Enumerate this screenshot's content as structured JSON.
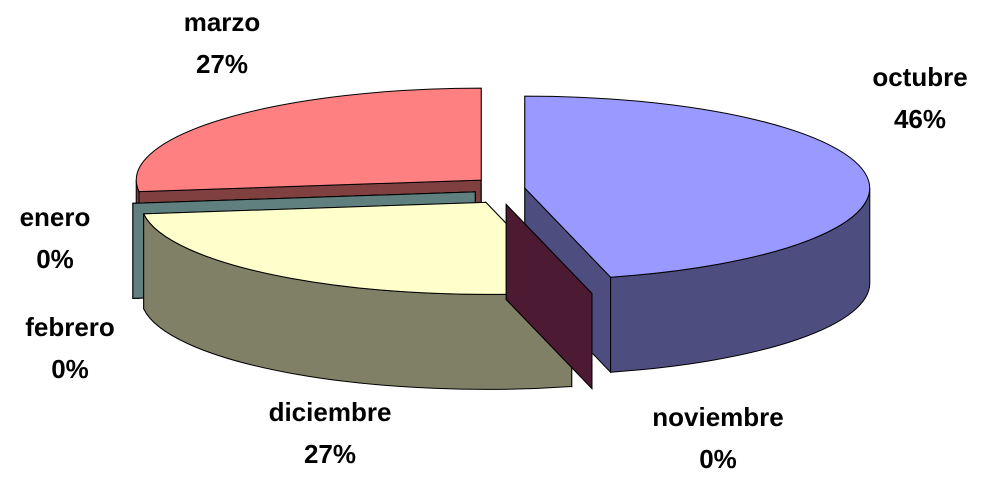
{
  "chart_data": {
    "type": "pie3d",
    "categories": [
      "octubre",
      "noviembre",
      "diciembre",
      "febrero",
      "enero",
      "marzo"
    ],
    "values": [
      46,
      0,
      27,
      0,
      0,
      27
    ],
    "value_labels": [
      "46%",
      "0%",
      "27%",
      "0%",
      "0%",
      "27%"
    ],
    "colors": [
      "#9999ff",
      "#993366",
      "#ffffcc",
      "#ccffff",
      "#bfffff",
      "#ff8080"
    ]
  }
}
